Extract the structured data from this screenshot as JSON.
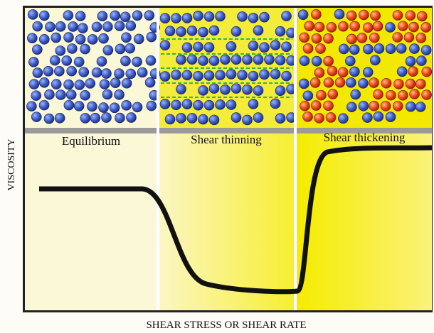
{
  "axis_labels": {
    "y": "VISCOSITY",
    "x": "SHEAR STRESS OR SHEAR RATE"
  },
  "panels": [
    {
      "label": "Equilibrium"
    },
    {
      "label": "Shear thinning"
    },
    {
      "label": "Shear thickening"
    }
  ]
}
